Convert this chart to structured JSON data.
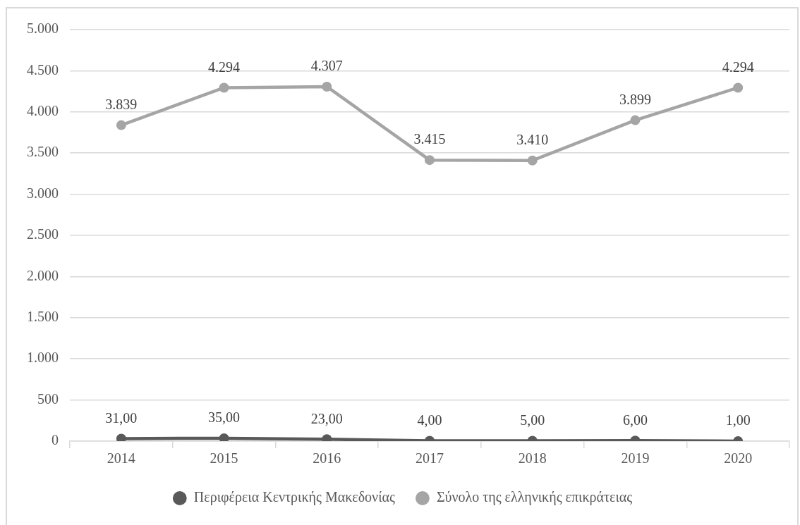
{
  "chart_data": {
    "type": "line",
    "categories": [
      "2014",
      "2015",
      "2016",
      "2017",
      "2018",
      "2019",
      "2020"
    ],
    "series": [
      {
        "name": "Περιφέρεια Κεντρικής Μακεδονίας",
        "color": "#595959",
        "values": [
          31,
          35,
          23,
          4,
          5,
          6,
          1
        ],
        "value_labels": [
          "31,00",
          "35,00",
          "23,00",
          "4,00",
          "5,00",
          "6,00",
          "1,00"
        ]
      },
      {
        "name": "Σύνολο της ελληνικής επικράτειας",
        "color": "#a5a5a5",
        "values": [
          3839,
          4294,
          4307,
          3415,
          3410,
          3899,
          4294
        ],
        "value_labels": [
          "3.839",
          "4.294",
          "4.307",
          "3.415",
          "3.410",
          "3.899",
          "4.294"
        ]
      }
    ],
    "ylim": [
      0,
      5000
    ],
    "yticks": [
      0,
      500,
      {
        "value": 1000,
        "label": "1.000"
      },
      {
        "value": 1500,
        "label": "1.500"
      },
      {
        "value": 2000,
        "label": "2.000"
      },
      {
        "value": 2500,
        "label": "2.500"
      },
      {
        "value": 3000,
        "label": "3.000"
      },
      {
        "value": 3500,
        "label": "3.500"
      },
      {
        "value": 4000,
        "label": "4.000"
      },
      {
        "value": 4500,
        "label": "4.500"
      },
      {
        "value": 5000,
        "label": "5.000"
      }
    ],
    "grid": "y",
    "legend": "bottom",
    "marker": "circle"
  }
}
